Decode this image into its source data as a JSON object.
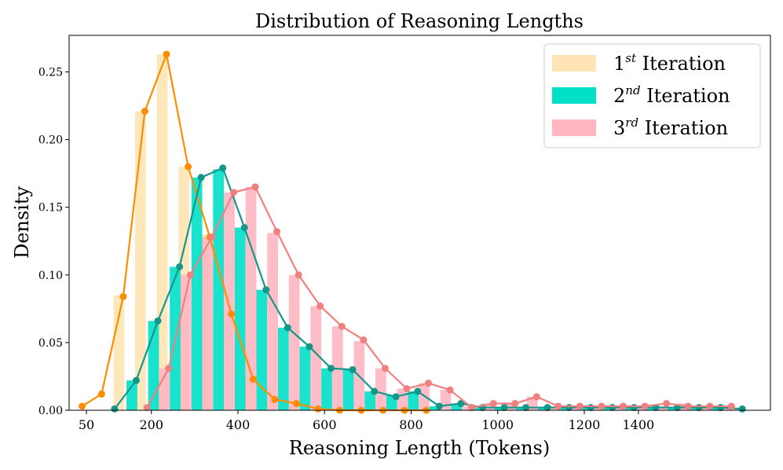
{
  "chart_data": {
    "type": "bar+line",
    "title": "Distribution of Reasoning Lengths",
    "xlabel": "Reasoning Length (Tokens)",
    "ylabel": "Density",
    "xlim": [
      -40,
      1580
    ],
    "ylim": [
      0,
      0.277
    ],
    "x_tick_labels": [
      {
        "label": "50",
        "x": 0
      },
      {
        "label": "200",
        "x": 150
      },
      {
        "label": "400",
        "x": 350
      },
      {
        "label": "600",
        "x": 550
      },
      {
        "label": "800",
        "x": 750
      },
      {
        "label": "1000",
        "x": 950
      },
      {
        "label": "1200",
        "x": 1150
      },
      {
        "label": "1400",
        "x": 1275
      }
    ],
    "y_ticks": [
      0.0,
      0.05,
      0.1,
      0.15,
      0.2,
      0.25
    ],
    "y_tick_labels": [
      "0.00",
      "0.05",
      "0.10",
      "0.15",
      "0.20",
      "0.25"
    ],
    "legend_location": "upper right",
    "series": [
      {
        "name": "1st Iteration",
        "label_base": "1",
        "label_sup": "st",
        "label_rest": " Iteration",
        "bar_color": "#ffe4b5",
        "line_color": "#ff8c00",
        "bar_x": [
          25,
          75,
          125,
          175,
          225,
          275,
          325,
          375,
          425,
          475,
          525,
          575,
          625,
          675,
          725,
          775
        ],
        "bar_values": [
          0.0,
          0.085,
          0.221,
          0.263,
          0.18,
          0.13,
          0.072,
          0.024,
          0.008,
          0.005,
          0.002,
          0.0,
          0.0,
          0.0,
          0.0,
          0.0
        ],
        "line_x": [
          -10,
          35,
          85,
          135,
          185,
          235,
          285,
          335,
          385,
          435,
          485,
          535,
          585,
          635,
          685,
          735,
          785
        ],
        "line_values": [
          0.003,
          0.012,
          0.084,
          0.221,
          0.263,
          0.18,
          0.128,
          0.071,
          0.023,
          0.008,
          0.005,
          0.001,
          0.0,
          0.0,
          0.0,
          0.0,
          0.0
        ]
      },
      {
        "name": "2nd Iteration",
        "label_base": "2",
        "label_sup": "nd",
        "label_rest": " Iteration",
        "bar_color": "#00e0c6",
        "line_color": "#15968a",
        "bar_x": [
          105,
          155,
          205,
          255,
          305,
          355,
          405,
          455,
          505,
          555,
          605,
          655,
          705,
          755,
          805,
          855,
          905,
          955,
          1005,
          1055,
          1105,
          1155,
          1205,
          1255,
          1305,
          1355,
          1405,
          1455
        ],
        "bar_values": [
          0.022,
          0.066,
          0.106,
          0.172,
          0.178,
          0.135,
          0.089,
          0.061,
          0.047,
          0.031,
          0.03,
          0.014,
          0.011,
          0.014,
          0.003,
          0.005,
          0.002,
          0.002,
          0.002,
          0.002,
          0.002,
          0.002,
          0.002,
          0.002,
          0.002,
          0.002,
          0.002,
          0.002
        ],
        "line_x": [
          65,
          115,
          165,
          215,
          265,
          315,
          365,
          415,
          465,
          515,
          565,
          615,
          665,
          715,
          765,
          815,
          865,
          915,
          965,
          1015,
          1065,
          1115,
          1165,
          1215,
          1265,
          1315,
          1365,
          1415,
          1465,
          1515
        ],
        "line_values": [
          0.001,
          0.022,
          0.066,
          0.106,
          0.172,
          0.179,
          0.135,
          0.089,
          0.061,
          0.047,
          0.031,
          0.03,
          0.014,
          0.01,
          0.014,
          0.003,
          0.005,
          0.002,
          0.002,
          0.002,
          0.002,
          0.002,
          0.002,
          0.002,
          0.002,
          0.002,
          0.002,
          0.002,
          0.002,
          0.001
        ]
      },
      {
        "name": "3rd Iteration",
        "label_base": "3",
        "label_sup": "rd",
        "label_rest": " Iteration",
        "bar_color": "#ffb6c1",
        "line_color": "#f08080",
        "bar_x": [
          180,
          230,
          280,
          330,
          380,
          430,
          480,
          530,
          580,
          630,
          680,
          730,
          780,
          830,
          880,
          930,
          980,
          1030,
          1080,
          1130,
          1180,
          1230,
          1280,
          1330,
          1380,
          1430,
          1480
        ],
        "bar_values": [
          0.031,
          0.1,
          0.128,
          0.161,
          0.165,
          0.131,
          0.1,
          0.077,
          0.062,
          0.051,
          0.031,
          0.016,
          0.02,
          0.015,
          0.003,
          0.005,
          0.005,
          0.01,
          0.003,
          0.003,
          0.003,
          0.003,
          0.003,
          0.003,
          0.005,
          0.003,
          0.003
        ],
        "line_x": [
          140,
          190,
          240,
          290,
          340,
          390,
          440,
          490,
          540,
          590,
          640,
          690,
          740,
          790,
          840,
          890,
          940,
          990,
          1040,
          1090,
          1140,
          1190,
          1240,
          1290,
          1340,
          1390,
          1440,
          1490
        ],
        "line_values": [
          0.002,
          0.031,
          0.1,
          0.128,
          0.161,
          0.165,
          0.132,
          0.1,
          0.077,
          0.062,
          0.052,
          0.031,
          0.016,
          0.02,
          0.015,
          0.002,
          0.005,
          0.005,
          0.01,
          0.003,
          0.003,
          0.003,
          0.003,
          0.003,
          0.005,
          0.003,
          0.003,
          0.003
        ]
      }
    ]
  }
}
